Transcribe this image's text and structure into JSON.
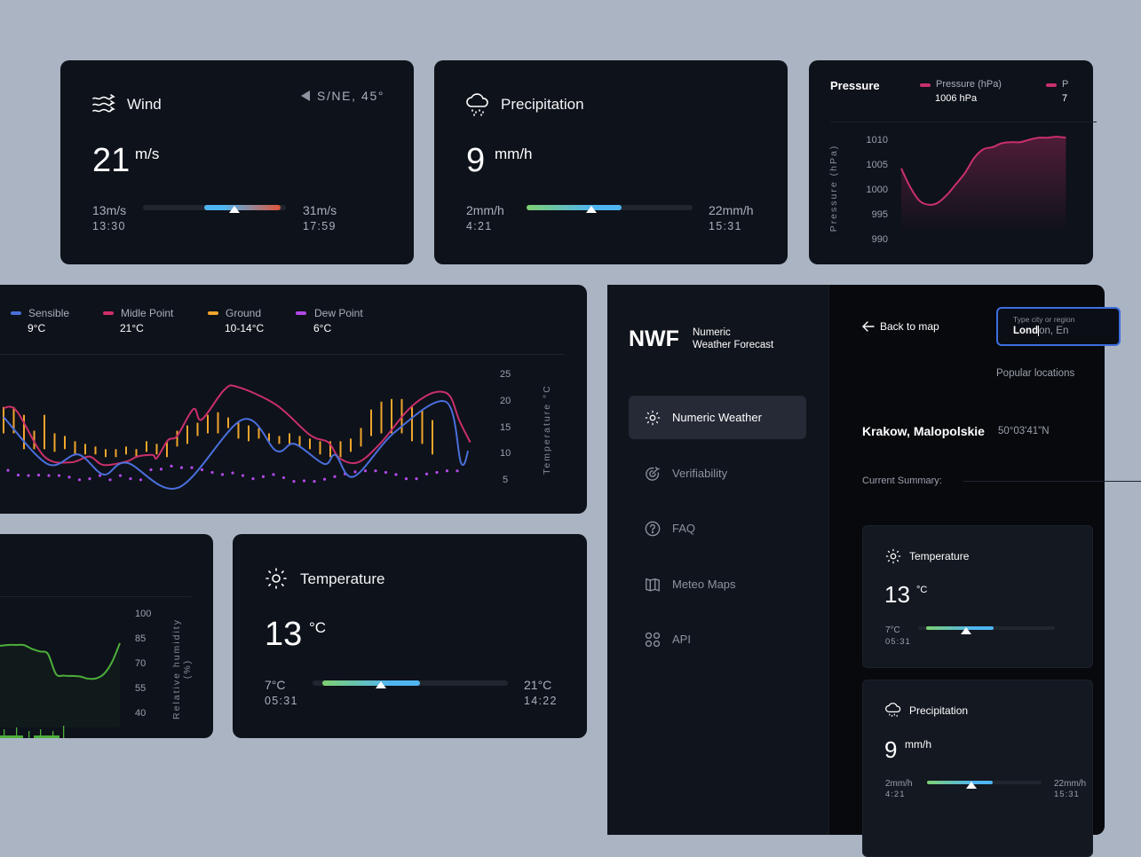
{
  "colors": {
    "background": "#aab4c3",
    "card": "#0e121a",
    "sensible": "#4a6fdc",
    "midle_point": "#c9306b",
    "ground": "#f0a52c",
    "dew_point": "#b248e8",
    "pressure": "#c9306b",
    "humidity": "#4caf3a",
    "search_border": "#3d6ee0"
  },
  "wind": {
    "icon": "wind-icon",
    "title": "Wind",
    "direction_icon": "navigation-arrow-icon",
    "direction": "S/NE, 45°",
    "value": "21",
    "unit": "m/s",
    "min": "13m/s",
    "min_time": "13:30",
    "max": "31m/s",
    "max_time": "17:59",
    "range": {
      "fill_start": 0.43,
      "fill_end": 0.96,
      "marker": 0.64
    }
  },
  "precipitation": {
    "icon": "cloud-rain-icon",
    "title": "Precipitation",
    "value": "9",
    "unit": "mm/h",
    "min": "2mm/h",
    "min_time": "4:21",
    "max": "22mm/h",
    "max_time": "15:31",
    "range": {
      "fill_start": 0,
      "fill_end": 0.57,
      "marker": 0.39
    }
  },
  "temperature": {
    "icon": "sun-icon",
    "title": "Temperature",
    "value": "13",
    "unit": "°C",
    "min": "7°C",
    "min_time": "05:31",
    "max": "21°C",
    "max_time": "14:22",
    "range": {
      "fill_start": 0.05,
      "fill_end": 0.55,
      "marker": 0.35
    }
  },
  "pressure_card": {
    "title": "Pressure",
    "legend": [
      {
        "label": "Pressure (hPa)",
        "value": "1006 hPa"
      },
      {
        "label": "P",
        "value": "7"
      }
    ]
  },
  "temp_chart_card": {
    "legend": [
      {
        "label": "Sensible",
        "value": "9°C"
      },
      {
        "label": "Midle Point",
        "value": "21°C"
      },
      {
        "label": "Ground",
        "value": "10-14°C"
      },
      {
        "label": "Dew Point",
        "value": "6°C"
      }
    ]
  },
  "chart_data": [
    {
      "type": "area",
      "ylabel": "Pressure (hPa)",
      "yticks": [
        "1010",
        "1005",
        "1000",
        "995",
        "990"
      ],
      "ylim": [
        990,
        1010
      ],
      "grid": false,
      "series": [
        {
          "name": "Pressure (hPa)",
          "values": [
            1004.3,
            1000.5,
            997.8,
            997,
            997.4,
            999,
            1001.2,
            1003.5,
            1006.5,
            1008.2,
            1008.6,
            1009.4,
            1009.6,
            1009.6,
            1010.1,
            1010.5,
            1010.5,
            1010.7,
            1010.5
          ]
        }
      ]
    },
    {
      "type": "line",
      "ylabel": "Temperature °C",
      "yticks": [
        "25",
        "20",
        "15",
        "10",
        "5"
      ],
      "ylim": [
        5,
        25
      ],
      "grid": false,
      "legend": "top-left",
      "series": [
        {
          "name": "Sensible",
          "points": [
            [
              0,
              17.1
            ],
            [
              4.3,
              8.2
            ],
            [
              7.3,
              10
            ],
            [
              9.8,
              6.2
            ],
            [
              12.1,
              8.4
            ],
            [
              17.1,
              3.7
            ],
            [
              23.4,
              16.6
            ],
            [
              26.7,
              10.7
            ],
            [
              28.5,
              12
            ],
            [
              31.4,
              8.2
            ],
            [
              32.5,
              9.9
            ],
            [
              34.3,
              5.8
            ],
            [
              38.3,
              14.2
            ],
            [
              43.3,
              20
            ],
            [
              44.8,
              8.4
            ],
            [
              45.5,
              10.7
            ]
          ]
        },
        {
          "name": "Midle Point",
          "points": [
            [
              0,
              18.8
            ],
            [
              1.3,
              18.2
            ],
            [
              4,
              9.6
            ],
            [
              6.6,
              8.5
            ],
            [
              8.4,
              9.6
            ],
            [
              9.8,
              8
            ],
            [
              12.1,
              8.7
            ],
            [
              13.1,
              9.6
            ],
            [
              14.6,
              9.9
            ],
            [
              15,
              9.3
            ],
            [
              16.1,
              12.7
            ],
            [
              17,
              13.5
            ],
            [
              18.6,
              18.6
            ],
            [
              19.4,
              16.6
            ],
            [
              21.6,
              22.2
            ],
            [
              22.9,
              22.8
            ],
            [
              26.7,
              19.4
            ],
            [
              30,
              13.7
            ],
            [
              31.8,
              12.3
            ],
            [
              32.9,
              9.3
            ],
            [
              34.7,
              8.5
            ],
            [
              36.9,
              12.1
            ],
            [
              39.5,
              18.2
            ],
            [
              41.3,
              21
            ],
            [
              42.8,
              21.9
            ],
            [
              43.8,
              20.8
            ],
            [
              44.6,
              16.6
            ],
            [
              45.7,
              12.3
            ]
          ]
        },
        {
          "name": "Ground",
          "ranges": [
            [
              14,
              19
            ],
            [
              14,
              19
            ],
            [
              11,
              17.5
            ],
            [
              11,
              14.5
            ],
            [
              11,
              17.5
            ],
            [
              10.5,
              14
            ],
            [
              11,
              13.5
            ],
            [
              10,
              12.5
            ],
            [
              10,
              12
            ],
            [
              10,
              11.5
            ],
            [
              9.5,
              11
            ],
            [
              9.5,
              11
            ],
            [
              10,
              11.5
            ],
            [
              9.5,
              11
            ],
            [
              10.5,
              12.5
            ],
            [
              10,
              12
            ],
            [
              9.5,
              12.5
            ],
            [
              11.5,
              14.5
            ],
            [
              12,
              15.5
            ],
            [
              13.5,
              16
            ],
            [
              14,
              17.5
            ],
            [
              14,
              18
            ],
            [
              15,
              17
            ],
            [
              13,
              16
            ],
            [
              12.5,
              15.5
            ],
            [
              13,
              15
            ],
            [
              12.5,
              14
            ],
            [
              12,
              13.5
            ],
            [
              12,
              14
            ],
            [
              11.5,
              13.5
            ],
            [
              11,
              13
            ],
            [
              10,
              12.5
            ],
            [
              9.5,
              12.5
            ],
            [
              9.5,
              12.5
            ],
            [
              10.5,
              13
            ],
            [
              11.5,
              15
            ],
            [
              13.5,
              18.5
            ],
            [
              14,
              20
            ],
            [
              14,
              20.5
            ],
            [
              14,
              20.5
            ],
            [
              12.5,
              19
            ],
            [
              12,
              18.5
            ],
            [
              10,
              16.5
            ]
          ]
        },
        {
          "name": "Dew Point",
          "values": [
            7.0,
            6.1,
            6.0,
            6.1,
            6.0,
            6.0,
            5.7,
            5.2,
            5.4,
            6.0,
            5.2,
            6.0,
            5.4,
            5.2,
            7.1,
            7.2,
            7.8,
            7.5,
            7.5,
            7.1,
            6.6,
            6.2,
            6.5,
            6.0,
            5.4,
            5.8,
            6.2,
            5.6,
            4.9,
            5.0,
            4.9,
            5.3,
            5.8,
            6.3,
            6.7,
            6.9,
            6.9,
            6.6,
            6.2,
            5.4,
            5.4,
            6.3,
            6.6,
            6.9,
            6.9
          ]
        }
      ]
    },
    {
      "type": "area",
      "ylabel": "Relative humidity (%)",
      "yticks": [
        "100",
        "85",
        "70",
        "55",
        "40"
      ],
      "ylim": [
        40,
        100
      ],
      "grid": false,
      "series": [
        {
          "values": [
            80.9,
            81.4,
            81.4,
            81.3,
            79,
            77.5,
            76,
            64,
            63,
            62.8,
            62.5,
            61.2,
            61.3,
            64,
            71,
            82.5
          ]
        }
      ]
    }
  ],
  "app": {
    "logo": "NWF",
    "logo_line1": "Numeric",
    "logo_line2": "Weather Forecast",
    "nav": [
      {
        "label": "Numeric Weather",
        "icon": "sun-icon",
        "active": true
      },
      {
        "label": "Verifiability",
        "icon": "target-arrow-icon"
      },
      {
        "label": "FAQ",
        "icon": "question-circle-icon"
      },
      {
        "label": "Meteo Maps",
        "icon": "map-icon"
      },
      {
        "label": "API",
        "icon": "grid-circles-icon"
      }
    ],
    "back": "Back to map",
    "search": {
      "label": "Type city or region",
      "typed": "Lond",
      "suggestion": "on, En"
    },
    "popular": "Popular locations",
    "location": "Krakow, Malopolskie",
    "coords": "50°03'41\"N",
    "summary_label": "Current Summary:",
    "cards": [
      {
        "title": "Temperature",
        "value": "13",
        "unit": "°C",
        "min": "7°C",
        "min_time": "05:31",
        "range": {
          "fill_start": 0.06,
          "fill_end": 0.55,
          "marker": 0.35
        }
      },
      {
        "title": "Precipitation",
        "value": "9",
        "unit": "mm/h",
        "min": "2mm/h",
        "min_time": "4:21",
        "max": "22mm/h",
        "max_time": "15:31",
        "range": {
          "fill_start": 0,
          "fill_end": 0.57,
          "marker": 0.39
        }
      }
    ]
  }
}
